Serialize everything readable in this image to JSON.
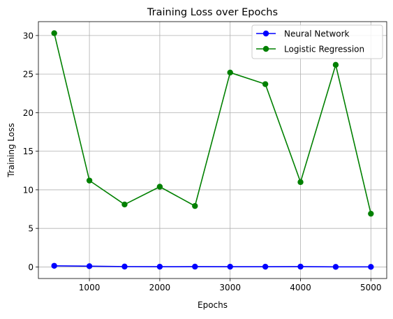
{
  "chart_data": {
    "type": "line",
    "title": "Training Loss over Epochs",
    "xlabel": "Epochs",
    "ylabel": "Training Loss",
    "x": [
      500,
      1000,
      1500,
      2000,
      2500,
      3000,
      3500,
      4000,
      4500,
      5000
    ],
    "xlim": [
      275,
      5225
    ],
    "ylim": [
      -1.5,
      31.8
    ],
    "xticks": [
      1000,
      2000,
      3000,
      4000,
      5000
    ],
    "yticks": [
      0,
      5,
      10,
      15,
      20,
      25,
      30
    ],
    "grid": true,
    "legend_position": "top-right",
    "series": [
      {
        "name": "Neural Network",
        "color": "#0000ff",
        "marker": "circle",
        "values": [
          0.15,
          0.1,
          0.05,
          0.03,
          0.04,
          0.03,
          0.03,
          0.04,
          0.01,
          0.01
        ]
      },
      {
        "name": "Logistic Regression",
        "color": "#008000",
        "marker": "circle",
        "values": [
          30.3,
          11.2,
          8.1,
          10.4,
          7.9,
          25.2,
          23.7,
          11.0,
          26.2,
          6.9
        ]
      }
    ]
  }
}
